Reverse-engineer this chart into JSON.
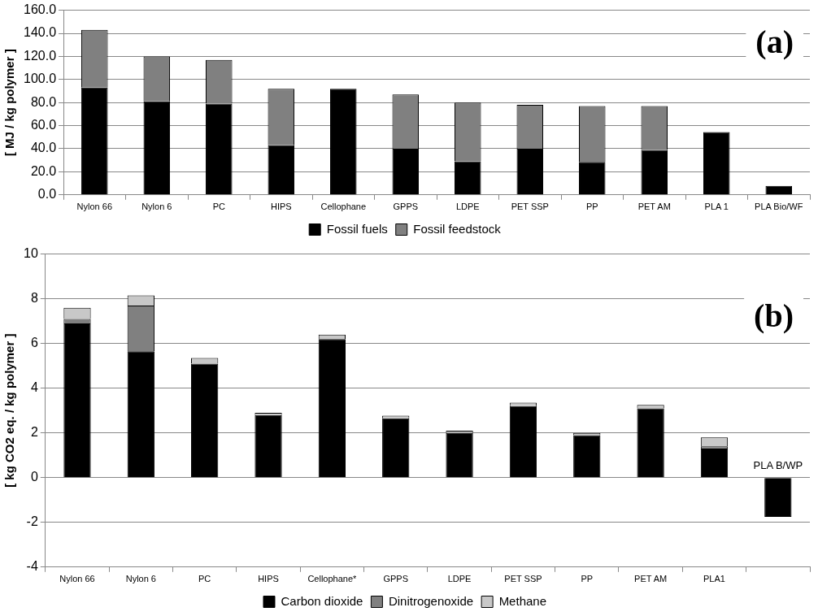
{
  "chart_data": [
    {
      "type": "bar",
      "stacked": true,
      "ylabel": "[ MJ / kg polymer ]",
      "categories": [
        "Nylon 66",
        "Nylon 6",
        "PC",
        "HIPS",
        "Cellophane",
        "GPPS",
        "LDPE",
        "PET SSP",
        "PP",
        "PET AM",
        "PLA 1",
        "PLA Bio/WF"
      ],
      "series": [
        {
          "name": "Fossil fuels",
          "color": "#000000",
          "values": [
            93,
            81,
            79,
            43,
            92,
            40,
            29,
            40,
            28.6,
            39,
            54.4,
            7.8
          ]
        },
        {
          "name": "Fossil feedstock",
          "color": "#808080",
          "values": [
            50,
            39,
            38,
            49,
            0,
            47,
            51,
            38,
            48.4,
            38,
            0,
            0
          ]
        }
      ],
      "ylim": [
        0,
        160
      ],
      "yticks": [
        {
          "value": 0,
          "label": "0.0"
        },
        {
          "value": 20,
          "label": "20.0"
        },
        {
          "value": 40,
          "label": "40.0"
        },
        {
          "value": 60,
          "label": "60.0"
        },
        {
          "value": 80,
          "label": "80.0"
        },
        {
          "value": 100,
          "label": "100.0"
        },
        {
          "value": 120,
          "label": "120.0"
        },
        {
          "value": 140,
          "label": "140.0"
        },
        {
          "value": 160,
          "label": "160.0"
        }
      ],
      "grid": "y",
      "legend": "bottom",
      "annotations": [
        "(a)"
      ]
    },
    {
      "type": "bar",
      "stacked": true,
      "ylabel": "[ kg CO2 eq. / kg polymer ]",
      "categories": [
        "Nylon 66",
        "Nylon 6",
        "PC",
        "HIPS",
        "Cellophane*",
        "GPPS",
        "LDPE",
        "PET SSP",
        "PP",
        "PET AM",
        "PLA1",
        null
      ],
      "series": [
        {
          "name": "Carbon dioxide",
          "color": "#000000",
          "values": [
            6.9,
            5.65,
            5.1,
            2.8,
            6.2,
            2.65,
            2.0,
            3.2,
            1.9,
            3.1,
            1.3,
            -1.75
          ]
        },
        {
          "name": "Dinitrogenoxide",
          "color": "#808080",
          "values": [
            0.2,
            2.05,
            0,
            0,
            0,
            0,
            0,
            0,
            0,
            0,
            0.1,
            0
          ]
        },
        {
          "name": "Methane",
          "color": "#c8c8c8",
          "values": [
            0.5,
            0.45,
            0.25,
            0.1,
            0.2,
            0.12,
            0.1,
            0.15,
            0.1,
            0.15,
            0.4,
            0
          ]
        }
      ],
      "ylim": [
        -4,
        10
      ],
      "yticks": [
        -4,
        -2,
        0,
        2,
        4,
        6,
        8,
        10
      ],
      "grid": "y",
      "legend": "bottom",
      "annotations": [
        "(b)",
        "PLA B/WP"
      ]
    }
  ]
}
